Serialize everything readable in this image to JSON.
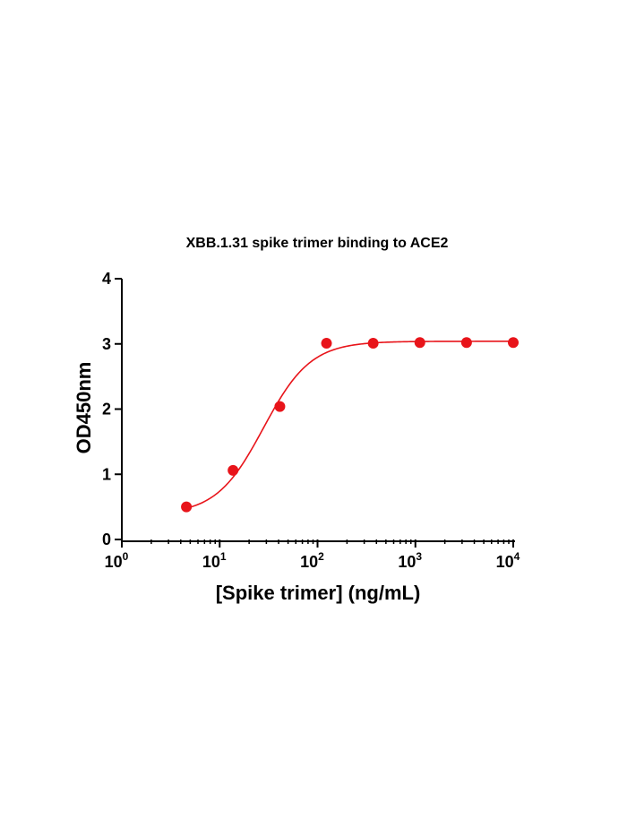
{
  "chart_data": {
    "type": "scatter",
    "title": "XBB.1.31 spike trimer binding to ACE2",
    "xlabel": "[Spike trimer] (ng/mL)",
    "ylabel": "OD450nm",
    "x_scale": "log",
    "xlim": [
      1,
      10000
    ],
    "ylim": [
      0,
      4
    ],
    "x_ticks": [
      {
        "base": "10",
        "exp": "0",
        "value": 1
      },
      {
        "base": "10",
        "exp": "1",
        "value": 10
      },
      {
        "base": "10",
        "exp": "2",
        "value": 100
      },
      {
        "base": "10",
        "exp": "3",
        "value": 1000
      },
      {
        "base": "10",
        "exp": "4",
        "value": 10000
      }
    ],
    "y_ticks": [
      "0",
      "1",
      "2",
      "3",
      "4"
    ],
    "grid": false,
    "series": [
      {
        "color": "#e8141a",
        "points": [
          {
            "x": 4.57,
            "y": 0.5
          },
          {
            "x": 13.7,
            "y": 1.06
          },
          {
            "x": 41.2,
            "y": 2.04
          },
          {
            "x": 123.5,
            "y": 3.01
          },
          {
            "x": 370.4,
            "y": 3.01
          },
          {
            "x": 1111,
            "y": 3.02
          },
          {
            "x": 3333,
            "y": 3.02
          },
          {
            "x": 10000,
            "y": 3.02
          }
        ],
        "fit": {
          "model": "4PL",
          "bottom": 0.38,
          "top": 3.04,
          "ec50": 28,
          "hill": 1.8
        }
      }
    ]
  }
}
